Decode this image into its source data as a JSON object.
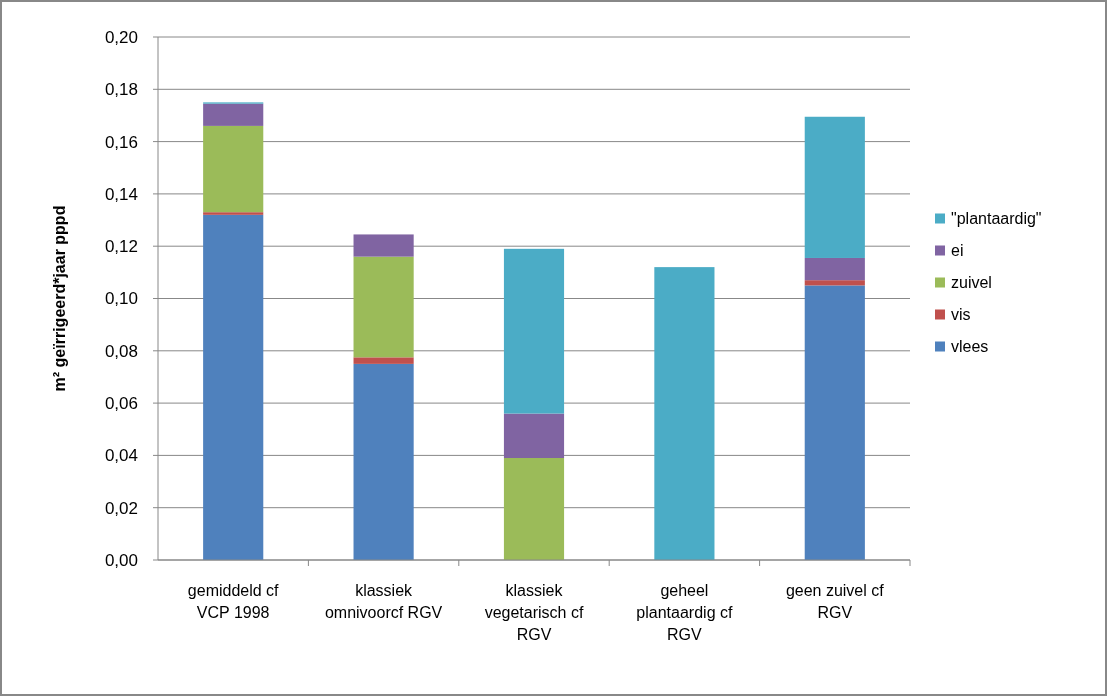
{
  "chart_data": {
    "type": "bar",
    "stacked": true,
    "ylabel": "m² geïrrigeerd*jaar pppd",
    "categories": [
      "gemiddeld cf VCP 1998",
      "klassiek omnivoorcf RGV",
      "klassiek vegetarisch cf RGV",
      "geheel plantaardig cf RGV",
      "geen zuivel cf RGV"
    ],
    "series": [
      {
        "name": "vlees",
        "color": "#4f81bd",
        "values": [
          0.132,
          0.075,
          null,
          null,
          0.105
        ]
      },
      {
        "name": "vis",
        "color": "#c0504d",
        "values": [
          0.001,
          0.0025,
          null,
          null,
          0.002
        ]
      },
      {
        "name": "zuivel",
        "color": "#9bbb59",
        "values": [
          0.033,
          0.0385,
          0.039,
          null,
          null
        ]
      },
      {
        "name": "ei",
        "color": "#8064a2",
        "values": [
          0.0085,
          0.0085,
          0.017,
          null,
          0.0085
        ]
      },
      {
        "name": "\"plantaardig\"",
        "color": "#4bacc6",
        "values": [
          0.0005,
          null,
          0.063,
          0.112,
          0.054
        ]
      }
    ],
    "ylim": [
      0,
      0.2
    ],
    "yticks": [
      {
        "value": 0,
        "label": "0,00"
      },
      {
        "value": 0.02,
        "label": "0,02"
      },
      {
        "value": 0.04,
        "label": "0,04"
      },
      {
        "value": 0.06,
        "label": "0,06"
      },
      {
        "value": 0.08,
        "label": "0,08"
      },
      {
        "value": 0.1,
        "label": "0,10"
      },
      {
        "value": 0.12,
        "label": "0,12"
      },
      {
        "value": 0.14,
        "label": "0,14"
      },
      {
        "value": 0.16,
        "label": "0,16"
      },
      {
        "value": 0.18,
        "label": "0,18"
      },
      {
        "value": 0.2,
        "label": "0,20"
      }
    ],
    "grid": "y",
    "legend": "right"
  }
}
